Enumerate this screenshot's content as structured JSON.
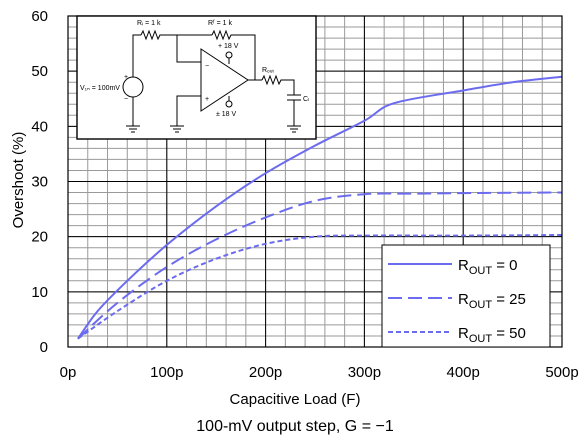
{
  "chart_data": {
    "type": "line",
    "title": "",
    "caption": "100-mV output step, G = −1",
    "xlabel": "Capacitive Load (F)",
    "ylabel": "Overshoot (%)",
    "xlim": [
      0,
      500
    ],
    "ylim": [
      0,
      60
    ],
    "x_ticks": [
      "0p",
      "100p",
      "200p",
      "300p",
      "400p",
      "500p"
    ],
    "y_ticks": [
      "0",
      "10",
      "20",
      "30",
      "40",
      "50",
      "60"
    ],
    "grid": "on (major and minor)",
    "legend_placement": "bottom-right",
    "legend_prefix": "R",
    "legend_subscript": "OUT",
    "series": [
      {
        "legend_value": "= 0",
        "style": "solid",
        "x": [
          10,
          30,
          60,
          100,
          150,
          200,
          250,
          300,
          330,
          400,
          450,
          500
        ],
        "y": [
          1.5,
          6.5,
          12,
          18.5,
          25.5,
          31.5,
          36.5,
          41,
          44.2,
          46.5,
          48,
          49
        ]
      },
      {
        "legend_value": "= 25",
        "style": "long-dash",
        "x": [
          10,
          50,
          100,
          150,
          200,
          250,
          300,
          350,
          400,
          500
        ],
        "y": [
          1.5,
          8,
          14.5,
          19.5,
          23.5,
          26.5,
          27.7,
          27.8,
          27.9,
          28
        ]
      },
      {
        "legend_value": "= 50",
        "style": "short-dash",
        "x": [
          10,
          50,
          100,
          150,
          200,
          250,
          300,
          400,
          500
        ],
        "y": [
          1.5,
          6.5,
          12,
          16,
          18.7,
          20,
          20.2,
          20.2,
          20.3
        ]
      }
    ],
    "line_color": "#6B6BF0"
  },
  "inset": {
    "vin_label": "V₁ₙ = 100mV",
    "ri_label": "Rᵢ = 1 k",
    "rf_label": "Rᶠ = 1 k",
    "vpos_label": "+ 18 V",
    "vneg_label": "± 18 V",
    "rout_label": "Rₒᵤₜ",
    "cl_label": "Cₗ",
    "plus_sign": "+",
    "minus_sign": "−"
  }
}
